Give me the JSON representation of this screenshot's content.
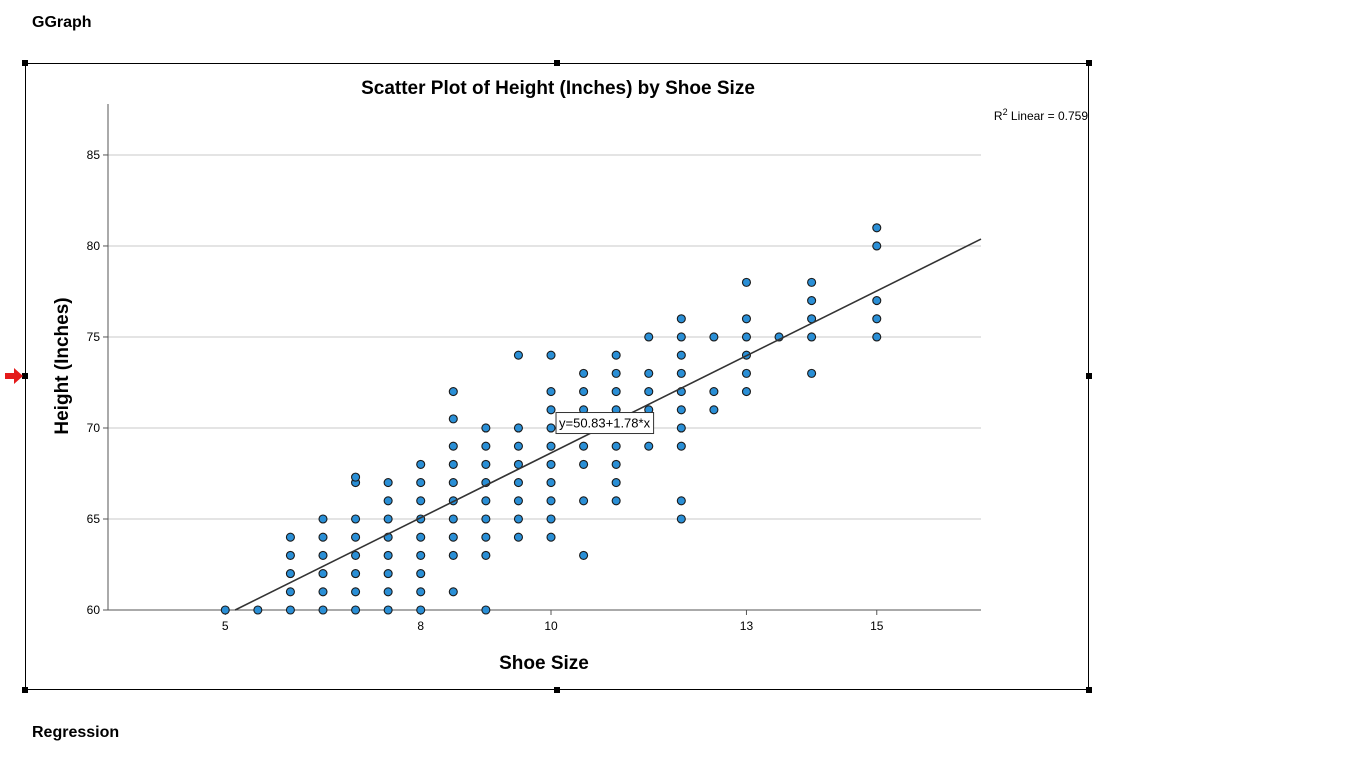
{
  "headings": {
    "graph": "GGraph",
    "regression": "Regression"
  },
  "colors": {
    "point_fill": "#2a8fd6",
    "point_stroke": "#1a1a1a",
    "gridline": "#c8c8c8",
    "fit_line": "#333333",
    "selection_arrow": "#e41b1b"
  },
  "icons": {
    "selection_marker": "red-arrow-right-icon"
  },
  "chart_data": {
    "type": "scatter",
    "title": "Scatter Plot of Height (Inches) by Shoe Size",
    "xlabel": "Shoe Size",
    "ylabel": "Height (Inches)",
    "xlim": [
      3.2,
      16.6
    ],
    "ylim": [
      60,
      87.8
    ],
    "x_ticks": [
      5,
      8,
      10,
      13,
      15
    ],
    "y_ticks": [
      60,
      65,
      70,
      75,
      80,
      85
    ],
    "grid": "horizontal",
    "fit_line": {
      "intercept": 50.83,
      "slope": 1.78,
      "label": "y=50.83+1.78*x",
      "label_at": [
        10,
        70.3
      ]
    },
    "r2_label": "R",
    "r2_sup": "2",
    "r2_text": " Linear = 0.759",
    "points": [
      [
        5,
        60
      ],
      [
        5.5,
        60
      ],
      [
        6,
        60
      ],
      [
        6,
        61
      ],
      [
        6,
        62
      ],
      [
        6,
        63
      ],
      [
        6,
        64
      ],
      [
        6.5,
        60
      ],
      [
        6.5,
        61
      ],
      [
        6.5,
        62
      ],
      [
        6.5,
        63
      ],
      [
        6.5,
        64
      ],
      [
        6.5,
        65
      ],
      [
        7,
        60
      ],
      [
        7,
        61
      ],
      [
        7,
        62
      ],
      [
        7,
        63
      ],
      [
        7,
        64
      ],
      [
        7,
        65
      ],
      [
        7,
        67
      ],
      [
        7,
        67.3
      ],
      [
        7.5,
        60
      ],
      [
        7.5,
        61
      ],
      [
        7.5,
        62
      ],
      [
        7.5,
        63
      ],
      [
        7.5,
        64
      ],
      [
        7.5,
        65
      ],
      [
        7.5,
        66
      ],
      [
        7.5,
        67
      ],
      [
        8,
        60
      ],
      [
        8,
        61
      ],
      [
        8,
        62
      ],
      [
        8,
        63
      ],
      [
        8,
        64
      ],
      [
        8,
        65
      ],
      [
        8,
        66
      ],
      [
        8,
        67
      ],
      [
        8,
        68
      ],
      [
        8.5,
        61
      ],
      [
        8.5,
        63
      ],
      [
        8.5,
        64
      ],
      [
        8.5,
        65
      ],
      [
        8.5,
        66
      ],
      [
        8.5,
        67
      ],
      [
        8.5,
        68
      ],
      [
        8.5,
        69
      ],
      [
        8.5,
        70.5
      ],
      [
        8.5,
        72
      ],
      [
        9,
        60
      ],
      [
        9,
        63
      ],
      [
        9,
        64
      ],
      [
        9,
        65
      ],
      [
        9,
        66
      ],
      [
        9,
        67
      ],
      [
        9,
        68
      ],
      [
        9,
        69
      ],
      [
        9,
        70
      ],
      [
        9.5,
        64
      ],
      [
        9.5,
        65
      ],
      [
        9.5,
        66
      ],
      [
        9.5,
        67
      ],
      [
        9.5,
        68
      ],
      [
        9.5,
        69
      ],
      [
        9.5,
        70
      ],
      [
        9.5,
        74
      ],
      [
        10,
        64
      ],
      [
        10,
        65
      ],
      [
        10,
        66
      ],
      [
        10,
        67
      ],
      [
        10,
        68
      ],
      [
        10,
        69
      ],
      [
        10,
        70
      ],
      [
        10,
        71
      ],
      [
        10,
        72
      ],
      [
        10,
        74
      ],
      [
        10.5,
        63
      ],
      [
        10.5,
        66
      ],
      [
        10.5,
        68
      ],
      [
        10.5,
        69
      ],
      [
        10.5,
        70
      ],
      [
        10.5,
        71
      ],
      [
        10.5,
        72
      ],
      [
        10.5,
        73
      ],
      [
        11,
        66
      ],
      [
        11,
        67
      ],
      [
        11,
        68
      ],
      [
        11,
        69
      ],
      [
        11,
        70
      ],
      [
        11,
        71
      ],
      [
        11,
        72
      ],
      [
        11,
        73
      ],
      [
        11,
        74
      ],
      [
        11.5,
        69
      ],
      [
        11.5,
        70
      ],
      [
        11.5,
        71
      ],
      [
        11.5,
        72
      ],
      [
        11.5,
        73
      ],
      [
        11.5,
        75
      ],
      [
        12,
        65
      ],
      [
        12,
        66
      ],
      [
        12,
        69
      ],
      [
        12,
        70
      ],
      [
        12,
        71
      ],
      [
        12,
        72
      ],
      [
        12,
        73
      ],
      [
        12,
        74
      ],
      [
        12,
        75
      ],
      [
        12,
        76
      ],
      [
        12.5,
        71
      ],
      [
        12.5,
        72
      ],
      [
        12.5,
        75
      ],
      [
        13,
        72
      ],
      [
        13,
        73
      ],
      [
        13,
        74
      ],
      [
        13,
        75
      ],
      [
        13,
        76
      ],
      [
        13,
        78
      ],
      [
        13.5,
        75
      ],
      [
        14,
        73
      ],
      [
        14,
        75
      ],
      [
        14,
        76
      ],
      [
        14,
        77
      ],
      [
        14,
        78
      ],
      [
        15,
        75
      ],
      [
        15,
        76
      ],
      [
        15,
        77
      ],
      [
        15,
        80
      ],
      [
        15,
        81
      ]
    ]
  }
}
